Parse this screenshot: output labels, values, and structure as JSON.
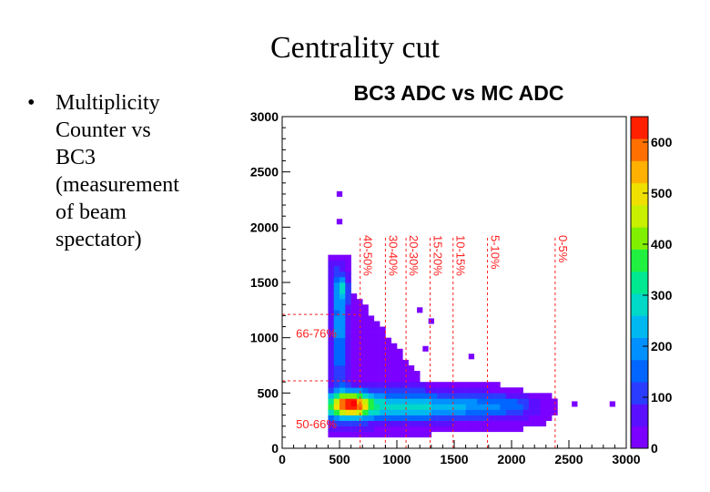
{
  "slide": {
    "title": "Centrality cut",
    "bullet": "•",
    "bullet_text": "Multiplicity\nCounter vs\nBC3\n(measurement\nof beam\nspectator)"
  },
  "chart_data": {
    "type": "heatmap",
    "title": "BC3 ADC vs MC ADC",
    "xlabel": "",
    "ylabel": "",
    "xlim": [
      0,
      3000
    ],
    "ylim": [
      0,
      3000
    ],
    "x_ticks": [
      "0",
      "500",
      "1000",
      "1500",
      "2000",
      "2500",
      "3000"
    ],
    "y_ticks": [
      "0",
      "500",
      "1000",
      "1500",
      "2000",
      "2500",
      "3000"
    ],
    "colorbar": {
      "range": [
        0,
        650
      ],
      "ticks": [
        "0",
        "100",
        "200",
        "300",
        "400",
        "500",
        "600"
      ]
    },
    "vertical_cuts": [
      {
        "x": 680,
        "label": "40-50%"
      },
      {
        "x": 900,
        "label": "30-40%"
      },
      {
        "x": 1080,
        "label": "20-30%"
      },
      {
        "x": 1290,
        "label": "15-20%"
      },
      {
        "x": 1490,
        "label": "10-15%"
      },
      {
        "x": 1790,
        "label": "5-10%"
      },
      {
        "x": 2380,
        "label": "0-5%"
      }
    ],
    "horizontal_cuts": [
      {
        "y": 1210,
        "label": "66-76%"
      },
      {
        "y": 610,
        "label": "50-66%"
      }
    ],
    "dense_band": {
      "description_values": "peak near x=600,y=400; band along y≈300-450 from x≈400 to x≈2000"
    }
  }
}
